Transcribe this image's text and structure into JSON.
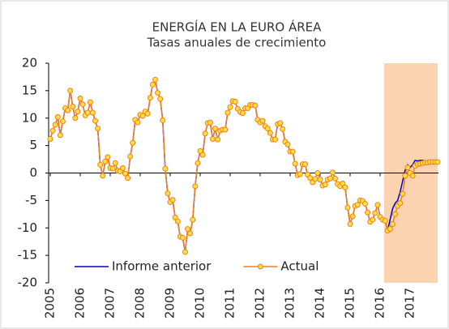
{
  "chart_data": {
    "type": "line",
    "title": "ENERGÍA EN LA EURO ÁREA",
    "subtitle": "Tasas anuales de crecimiento",
    "categories": [
      "2005",
      null,
      null,
      null,
      null,
      null,
      null,
      null,
      null,
      null,
      null,
      null,
      "2006",
      null,
      null,
      null,
      null,
      null,
      null,
      null,
      null,
      null,
      null,
      null,
      "2007",
      null,
      null,
      null,
      null,
      null,
      null,
      null,
      null,
      null,
      null,
      null,
      "2008",
      null,
      null,
      null,
      null,
      null,
      null,
      null,
      null,
      null,
      null,
      null,
      "2009",
      null,
      null,
      null,
      null,
      null,
      null,
      null,
      null,
      null,
      null,
      null,
      "2010",
      null,
      null,
      null,
      null,
      null,
      null,
      null,
      null,
      null,
      null,
      null,
      "2011",
      null,
      null,
      null,
      null,
      null,
      null,
      null,
      null,
      null,
      null,
      null,
      "2012",
      null,
      null,
      null,
      null,
      null,
      null,
      null,
      null,
      null,
      null,
      null,
      "2013",
      null,
      null,
      null,
      null,
      null,
      null,
      null,
      null,
      null,
      null,
      null,
      "2014",
      null,
      null,
      null,
      null,
      null,
      null,
      null,
      null,
      null,
      null,
      null,
      "2015",
      null,
      null,
      null,
      null,
      null,
      null,
      null,
      null,
      null,
      null,
      null,
      "2016",
      null,
      null,
      null,
      null,
      null,
      null,
      null,
      null,
      null,
      null,
      null,
      "2017",
      null,
      null,
      null,
      null,
      null,
      null,
      null,
      null,
      null,
      null,
      null
    ],
    "series": [
      {
        "name": "Informe anterior",
        "color": "#0000cc",
        "markers": false,
        "values": [
          6.2,
          7.7,
          8.8,
          10.2,
          6.9,
          9.4,
          11.8,
          11.4,
          15.0,
          12.1,
          10.0,
          11.2,
          13.6,
          12.5,
          10.5,
          11.0,
          12.9,
          11.0,
          9.5,
          8.1,
          1.5,
          -0.5,
          2.1,
          2.9,
          0.9,
          0.8,
          1.8,
          0.4,
          0.3,
          0.9,
          -0.1,
          -0.9,
          3.0,
          5.5,
          9.7,
          9.2,
          10.6,
          10.4,
          11.2,
          10.8,
          13.7,
          16.1,
          17.0,
          14.6,
          13.5,
          9.6,
          0.8,
          -3.7,
          -5.3,
          -4.9,
          -8.1,
          -8.8,
          -11.6,
          -11.8,
          -14.4,
          -10.2,
          -11.0,
          -8.5,
          -2.4,
          1.8,
          4.0,
          3.3,
          7.2,
          9.1,
          9.2,
          6.2,
          8.1,
          6.1,
          7.7,
          7.9,
          7.9,
          11.0,
          12.0,
          13.1,
          13.0,
          11.7,
          11.1,
          10.9,
          11.8,
          11.8,
          12.4,
          12.4,
          12.3,
          9.7,
          9.2,
          9.5,
          8.5,
          8.1,
          7.3,
          6.1,
          6.1,
          8.9,
          9.1,
          8.0,
          5.7,
          5.2,
          3.9,
          3.9,
          1.7,
          -0.4,
          -0.2,
          1.6,
          1.6,
          -0.3,
          -0.9,
          -1.7,
          -1.1,
          0.0,
          -1.2,
          -2.3,
          -2.1,
          -1.2,
          -1.0,
          0.1,
          -1.0,
          -2.0,
          -2.4,
          -1.9,
          -2.6,
          -6.3,
          -9.3,
          -7.9,
          -6.0,
          -5.8,
          -5.0,
          -5.1,
          -5.6,
          -7.2,
          -8.9,
          -8.5,
          -7.3,
          -5.8,
          -8.0,
          -8.5,
          -8.7,
          -10.5,
          -8.5,
          -6.5,
          -5.5,
          -5.0,
          -3.5,
          -1.5,
          0.5,
          1.5,
          1.0,
          1.5,
          2.3,
          2.2,
          2.3,
          2.3,
          2.2,
          2.2,
          2.1,
          2.1,
          2.0,
          2.0
        ]
      },
      {
        "name": "Actual",
        "color": "#f08020",
        "markers": true,
        "marker_fill": "#ffe040",
        "values": [
          6.2,
          7.7,
          8.8,
          10.2,
          6.9,
          9.4,
          11.8,
          11.4,
          15.0,
          12.1,
          10.0,
          11.2,
          13.6,
          12.5,
          10.5,
          11.0,
          12.9,
          11.0,
          9.5,
          8.1,
          1.5,
          -0.5,
          2.1,
          2.9,
          0.9,
          0.8,
          1.8,
          0.4,
          0.3,
          0.9,
          -0.1,
          -0.9,
          3.0,
          5.5,
          9.7,
          9.2,
          10.6,
          10.4,
          11.2,
          10.8,
          13.7,
          16.1,
          17.0,
          14.6,
          13.5,
          9.6,
          0.8,
          -3.7,
          -5.3,
          -4.9,
          -8.1,
          -8.8,
          -11.6,
          -11.8,
          -14.4,
          -10.2,
          -11.0,
          -8.5,
          -2.4,
          1.8,
          4.0,
          3.3,
          7.2,
          9.1,
          9.2,
          6.2,
          8.1,
          6.1,
          7.7,
          7.9,
          7.9,
          11.0,
          12.0,
          13.1,
          13.0,
          11.7,
          11.1,
          10.9,
          11.8,
          11.8,
          12.4,
          12.4,
          12.3,
          9.7,
          9.2,
          9.5,
          8.5,
          8.1,
          7.3,
          6.1,
          6.1,
          8.9,
          9.1,
          8.0,
          5.7,
          5.2,
          3.9,
          3.9,
          1.7,
          -0.4,
          -0.2,
          1.6,
          1.6,
          -0.3,
          -0.9,
          -1.7,
          -1.1,
          0.0,
          -1.2,
          -2.3,
          -2.1,
          -1.2,
          -1.0,
          0.1,
          -1.0,
          -2.0,
          -2.4,
          -1.9,
          -2.6,
          -6.3,
          -9.3,
          -7.9,
          -6.0,
          -5.8,
          -5.0,
          -5.1,
          -5.6,
          -7.2,
          -8.9,
          -8.5,
          -7.3,
          -5.8,
          -8.0,
          -8.5,
          -8.7,
          -10.5,
          -10.2,
          -9.3,
          -7.5,
          -6.0,
          -5.5,
          -3.8,
          -0.5,
          1.0,
          0.0,
          -0.5,
          1.3,
          1.6,
          1.7,
          1.8,
          1.9,
          1.9,
          2.0,
          2.0,
          2.0,
          2.0
        ]
      }
    ],
    "ylim": [
      -20,
      20
    ],
    "yticks": [
      -20,
      -15,
      -10,
      -5,
      0,
      5,
      10,
      15,
      20
    ],
    "grid": false,
    "legend": "bottom-left"
  }
}
